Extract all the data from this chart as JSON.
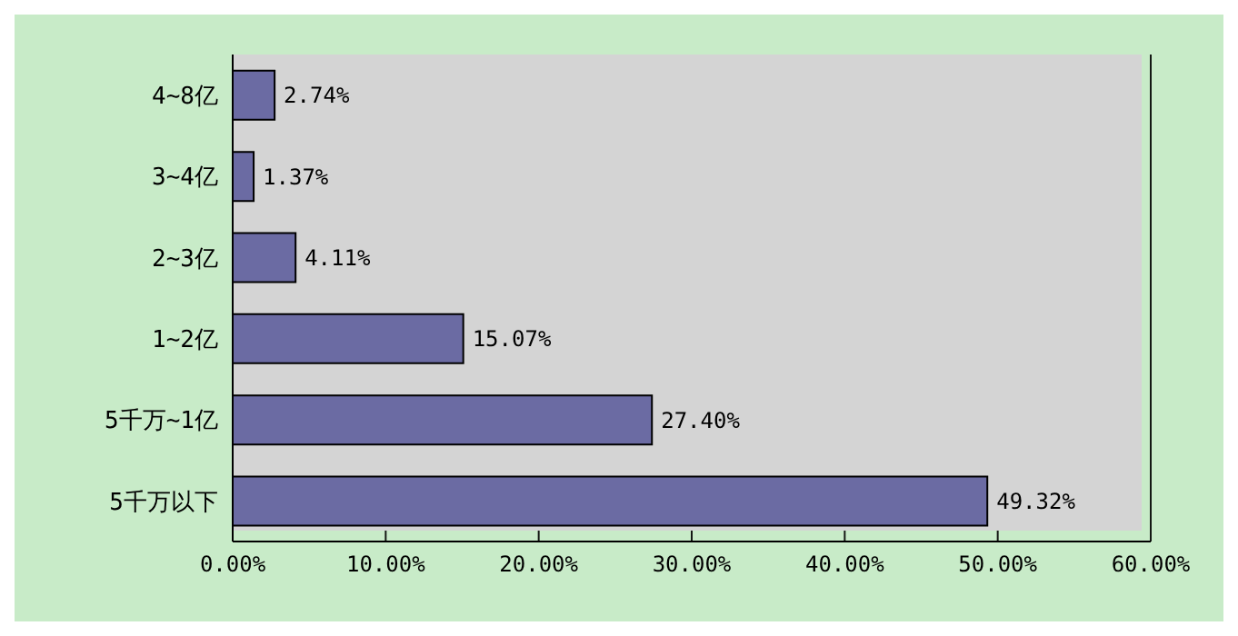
{
  "chart_data": {
    "type": "bar",
    "orientation": "horizontal",
    "categories": [
      "4~8亿",
      "3~4亿",
      "2~3亿",
      "1~2亿",
      "5千万~1亿",
      "5千万以下"
    ],
    "values": [
      2.74,
      1.37,
      4.11,
      15.07,
      27.4,
      49.32
    ],
    "value_labels": [
      "2.74%",
      "1.37%",
      "4.11%",
      "15.07%",
      "27.40%",
      "49.32%"
    ],
    "color": "#6b6ba3",
    "xlim": [
      0,
      60
    ],
    "xticks": [
      {
        "value": 0,
        "label": "0.00%"
      },
      {
        "value": 10,
        "label": "10.00%"
      },
      {
        "value": 20,
        "label": "20.00%"
      },
      {
        "value": 30,
        "label": "30.00%"
      },
      {
        "value": 40,
        "label": "40.00%"
      },
      {
        "value": 50,
        "label": "50.00%"
      },
      {
        "value": 60,
        "label": "60.00%"
      }
    ],
    "grid": "x"
  }
}
